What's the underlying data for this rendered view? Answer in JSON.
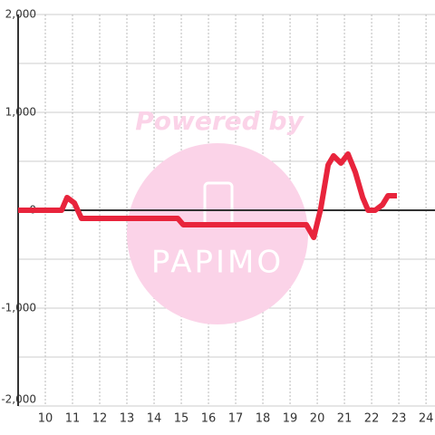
{
  "chart_data": {
    "type": "line",
    "watermark": [
      "Powered by",
      "PAPIMO"
    ],
    "x": [
      9,
      10.6,
      10.8,
      11.07,
      11.33,
      14.87,
      15.07,
      19.6,
      19.87,
      20.13,
      20.4,
      20.6,
      20.87,
      21.13,
      21.4,
      21.67,
      21.87,
      22.13,
      22.4,
      22.6,
      22.93
    ],
    "series": [
      {
        "color": "#e8243c",
        "values": [
          0,
          0,
          130,
          74,
          -83,
          -83,
          -148,
          -148,
          -278,
          19,
          463,
          556,
          481,
          574,
          389,
          130,
          0,
          0,
          56,
          148,
          148
        ]
      }
    ],
    "xlim": [
      9,
      24.33
    ],
    "xticks": [
      10,
      11,
      12,
      13,
      14,
      15,
      16,
      17,
      18,
      19,
      20,
      21,
      22,
      23,
      24
    ],
    "ylim": [
      -2000,
      2000
    ],
    "yticks": [
      {
        "value": -2000,
        "label": "-2,000"
      },
      {
        "value": -1000,
        "label": "-1,000"
      },
      0,
      {
        "value": 1000,
        "label": "1,000"
      },
      {
        "value": 2000,
        "label": "2,000"
      }
    ],
    "yminor": [
      -1500,
      -500,
      500,
      1500
    ],
    "grid": true
  }
}
